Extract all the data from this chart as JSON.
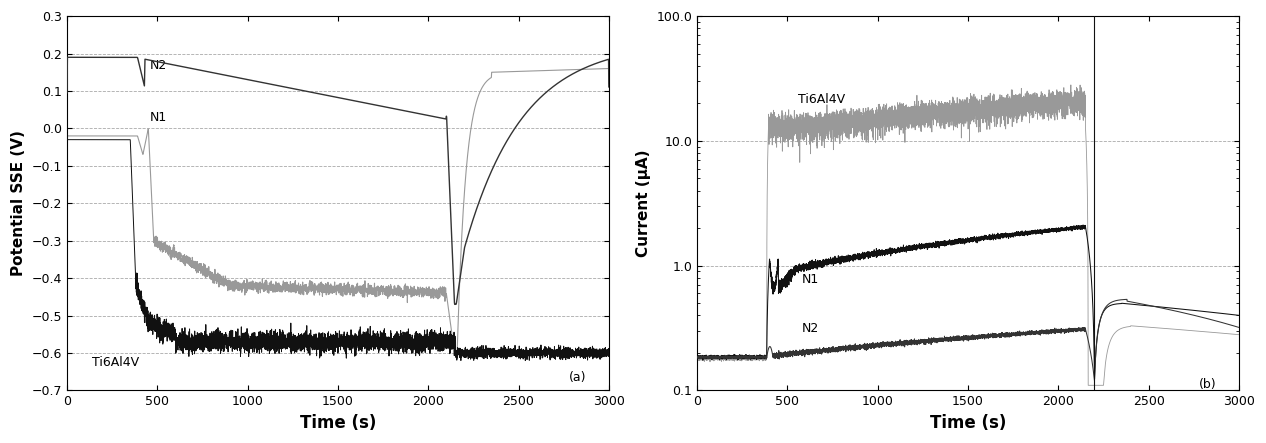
{
  "fig_width": 12.66,
  "fig_height": 4.43,
  "dpi": 100,
  "ax1": {
    "xlabel": "Time (s)",
    "ylabel": "Potential SSE (V)",
    "xlim": [
      0,
      3000
    ],
    "ylim": [
      -0.7,
      0.3
    ],
    "yticks": [
      -0.7,
      -0.6,
      -0.5,
      -0.4,
      -0.3,
      -0.2,
      -0.1,
      0.0,
      0.1,
      0.2,
      0.3
    ],
    "xticks": [
      0,
      500,
      1000,
      1500,
      2000,
      2500,
      3000
    ],
    "label": "(a)"
  },
  "ax2": {
    "xlabel": "Time (s)",
    "ylabel": "Current (μA)",
    "xlim": [
      0,
      3000
    ],
    "ylim_log": [
      0.1,
      100.0
    ],
    "xticks": [
      0,
      500,
      1000,
      1500,
      2000,
      2500,
      3000
    ],
    "label": "(b)"
  },
  "colors": {
    "black": "#111111",
    "gray": "#999999",
    "dark_gray": "#333333"
  }
}
